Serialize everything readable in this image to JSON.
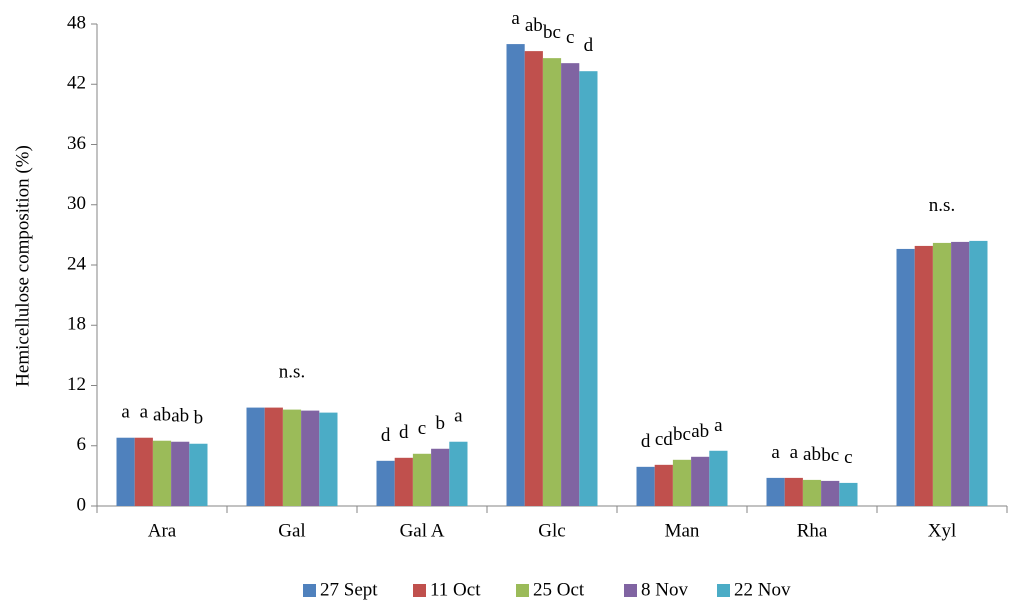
{
  "chart_data": {
    "type": "bar",
    "title": "",
    "xlabel": "",
    "ylabel": "Hemicellulose composition (%)",
    "ylim": [
      0,
      48
    ],
    "yticks": [
      0,
      6,
      12,
      18,
      24,
      30,
      36,
      42,
      48
    ],
    "grid": false,
    "legend_position": "bottom",
    "categories": [
      "Ara",
      "Gal",
      "Gal A",
      "Glc",
      "Man",
      "Rha",
      "Xyl"
    ],
    "series": [
      {
        "name": "27 Sept",
        "color": "#4F81BD",
        "values": [
          6.8,
          9.8,
          4.5,
          46.0,
          3.9,
          2.8,
          25.6
        ]
      },
      {
        "name": "11 Oct",
        "color": "#C0504D",
        "values": [
          6.8,
          9.8,
          4.8,
          45.3,
          4.1,
          2.8,
          25.9
        ]
      },
      {
        "name": "25 Oct",
        "color": "#9BBB59",
        "values": [
          6.5,
          9.6,
          5.2,
          44.6,
          4.6,
          2.6,
          26.2
        ]
      },
      {
        "name": "8 Nov",
        "color": "#8064A2",
        "values": [
          6.4,
          9.5,
          5.7,
          44.1,
          4.9,
          2.5,
          26.3
        ]
      },
      {
        "name": "22 Nov",
        "color": "#4BACC6",
        "values": [
          6.2,
          9.3,
          6.4,
          43.3,
          5.5,
          2.3,
          26.4
        ]
      }
    ],
    "annotations": [
      {
        "category": 0,
        "series": 0,
        "text": "a"
      },
      {
        "category": 0,
        "series": 1,
        "text": "a"
      },
      {
        "category": 0,
        "series": 2,
        "text": "ab"
      },
      {
        "category": 0,
        "series": 3,
        "text": "ab"
      },
      {
        "category": 0,
        "series": 4,
        "text": "b"
      },
      {
        "category": 1,
        "series": 2,
        "text": "n.s."
      },
      {
        "category": 2,
        "series": 0,
        "text": "d"
      },
      {
        "category": 2,
        "series": 1,
        "text": "d"
      },
      {
        "category": 2,
        "series": 2,
        "text": "c"
      },
      {
        "category": 2,
        "series": 3,
        "text": "b"
      },
      {
        "category": 2,
        "series": 4,
        "text": "a"
      },
      {
        "category": 3,
        "series": 0,
        "text": "a"
      },
      {
        "category": 3,
        "series": 1,
        "text": "ab"
      },
      {
        "category": 3,
        "series": 2,
        "text": "bc"
      },
      {
        "category": 3,
        "series": 3,
        "text": "c"
      },
      {
        "category": 3,
        "series": 4,
        "text": "d"
      },
      {
        "category": 4,
        "series": 0,
        "text": "d"
      },
      {
        "category": 4,
        "series": 1,
        "text": "cd"
      },
      {
        "category": 4,
        "series": 2,
        "text": "bc"
      },
      {
        "category": 4,
        "series": 3,
        "text": "ab"
      },
      {
        "category": 4,
        "series": 4,
        "text": "a"
      },
      {
        "category": 5,
        "series": 0,
        "text": "a"
      },
      {
        "category": 5,
        "series": 1,
        "text": "a"
      },
      {
        "category": 5,
        "series": 2,
        "text": "ab"
      },
      {
        "category": 5,
        "series": 3,
        "text": "bc"
      },
      {
        "category": 5,
        "series": 4,
        "text": "c"
      },
      {
        "category": 6,
        "series": 2,
        "text": "n.s."
      }
    ]
  }
}
